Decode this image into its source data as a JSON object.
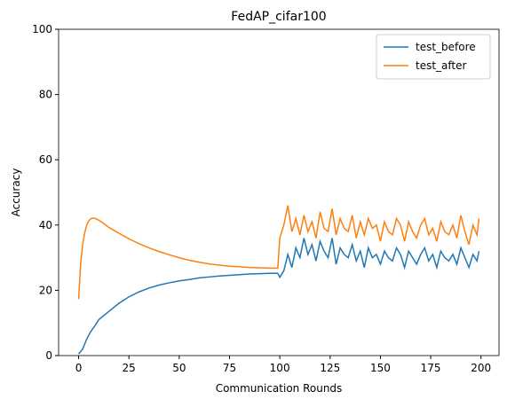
{
  "chart_data": {
    "type": "line",
    "title": "FedAP_cifar100",
    "xlabel": "Communication Rounds",
    "ylabel": "Accuracy",
    "x": [
      0,
      1,
      2,
      3,
      4,
      5,
      6,
      7,
      8,
      10,
      12,
      15,
      20,
      25,
      30,
      35,
      40,
      45,
      50,
      55,
      60,
      65,
      70,
      75,
      80,
      85,
      90,
      95,
      99,
      100,
      102,
      104,
      106,
      108,
      110,
      112,
      114,
      116,
      118,
      120,
      122,
      124,
      126,
      128,
      130,
      132,
      134,
      136,
      138,
      140,
      142,
      144,
      146,
      148,
      150,
      152,
      154,
      156,
      158,
      160,
      162,
      164,
      166,
      168,
      170,
      172,
      174,
      176,
      178,
      180,
      182,
      184,
      186,
      188,
      190,
      192,
      194,
      196,
      198,
      199
    ],
    "series": [
      {
        "name": "test_before",
        "color": "#1f77b4",
        "values": [
          0.5,
          1.2,
          2,
          3.5,
          5,
          6.2,
          7.3,
          8.2,
          9,
          11,
          12,
          13.5,
          16,
          18,
          19.5,
          20.7,
          21.6,
          22.3,
          22.9,
          23.3,
          23.8,
          24.1,
          24.4,
          24.6,
          24.8,
          25,
          25.1,
          25.2,
          25.2,
          24,
          26,
          31,
          27,
          33,
          30,
          36,
          31,
          34,
          29,
          35,
          32,
          30,
          36,
          28,
          33,
          31,
          30,
          34,
          29,
          32,
          27,
          33,
          30,
          31,
          28,
          32,
          30,
          29,
          33,
          31,
          27,
          32,
          30,
          28,
          31,
          33,
          29,
          31,
          27,
          32,
          30,
          29,
          31,
          28,
          33,
          30,
          27,
          31,
          29,
          32
        ]
      },
      {
        "name": "test_after",
        "color": "#ff7f0e",
        "values": [
          17.3,
          28,
          34,
          37.5,
          40,
          41.3,
          41.9,
          42.1,
          42.1,
          41.5,
          40.7,
          39.3,
          37.5,
          35.8,
          34.3,
          33,
          31.9,
          30.9,
          30,
          29.2,
          28.6,
          28.1,
          27.7,
          27.4,
          27.2,
          27,
          26.9,
          26.8,
          26.8,
          36,
          40,
          46,
          38,
          42,
          37,
          43,
          38,
          41,
          36,
          44,
          39,
          38,
          45,
          37,
          42,
          39,
          38,
          43,
          36,
          41,
          37,
          42,
          39,
          40,
          35,
          41,
          38,
          37,
          42,
          40,
          35,
          41,
          38,
          36,
          40,
          42,
          37,
          39,
          35,
          41,
          38,
          37,
          40,
          36,
          43,
          38,
          34,
          40,
          37,
          42
        ]
      }
    ],
    "xlim": [
      -9.95,
      208.95
    ],
    "xticks": [
      0,
      25,
      50,
      75,
      100,
      125,
      150,
      175,
      200
    ],
    "ylim": [
      0,
      100
    ],
    "yticks": [
      0,
      20,
      40,
      60,
      80,
      100
    ],
    "legend": "upper right"
  }
}
